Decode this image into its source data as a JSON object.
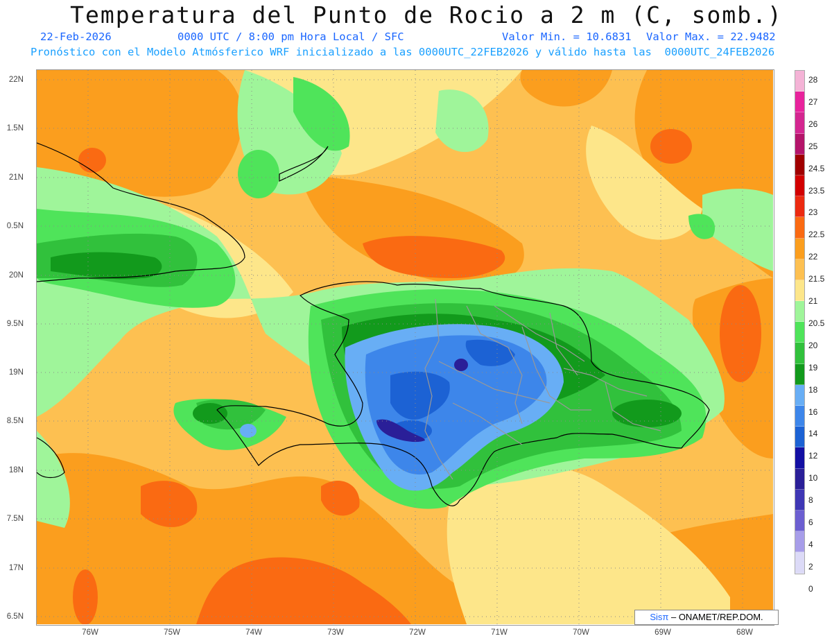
{
  "title": "Temperatura del Punto de Rocio a 2 m (C, somb.)",
  "subtitle_line1": {
    "date": "22-Feb-2026",
    "time": "0000 UTC / 8:00 pm Hora Local / SFC",
    "min": "Valor Min. = 10.6831",
    "max": "Valor Max. = 22.9482"
  },
  "subtitle_line2": "Pronóstico con el Modelo Atmósferico WRF inicializado a las 0000UTC_22FEB2026 y válido hasta las  0000UTC_24FEB2026",
  "lat_labels": [
    "22N",
    "1.5N",
    "21N",
    "0.5N",
    "20N",
    "9.5N",
    "19N",
    "8.5N",
    "18N",
    "7.5N",
    "17N",
    "6.5N"
  ],
  "lon_labels": [
    "76W",
    "75W",
    "74W",
    "73W",
    "72W",
    "71W",
    "70W",
    "69W",
    "68W"
  ],
  "colorbar": {
    "labels": [
      "28",
      "27",
      "26",
      "25",
      "24.5",
      "23.5",
      "23",
      "22.5",
      "22",
      "21.5",
      "21",
      "20.5",
      "20",
      "19",
      "18",
      "16",
      "14",
      "12",
      "10",
      "8",
      "6",
      "4",
      "2",
      "0"
    ],
    "colors": [
      "#f4b3d6",
      "#e8239c",
      "#d42690",
      "#b4146a",
      "#a00000",
      "#d20000",
      "#ec2a10",
      "#fa6a12",
      "#fb9e1e",
      "#fdc051",
      "#fde68a",
      "#9ff59a",
      "#4fe45a",
      "#31c13c",
      "#129a1c",
      "#68aef5",
      "#3d86ea",
      "#1c62d4",
      "#130fa3",
      "#2a1f98",
      "#3f37b5",
      "#6c5fd1",
      "#a79de9",
      "#dcdaf7"
    ]
  },
  "credit": {
    "brand": "Sisπ",
    "text": " – ONAMET/REP.DOM."
  }
}
